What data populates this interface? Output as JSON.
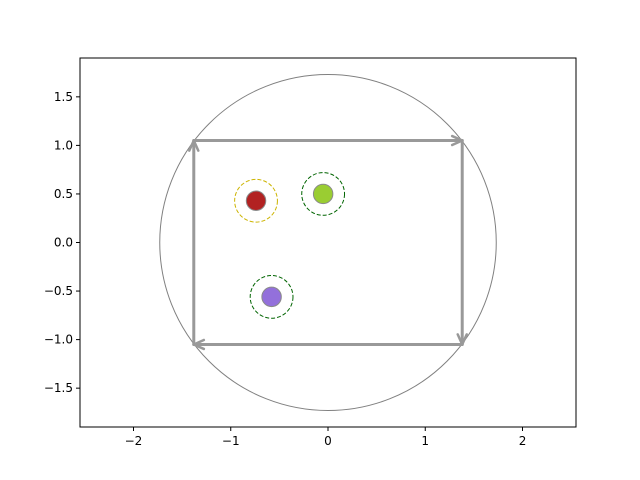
{
  "chart_data": {
    "type": "scatter",
    "xlim": [
      -2.55,
      2.55
    ],
    "ylim": [
      -1.9,
      1.9
    ],
    "xticks": [
      -2,
      -1,
      0,
      1,
      2
    ],
    "yticks": [
      -1.5,
      -1.0,
      -0.5,
      0.0,
      0.5,
      1.0,
      1.5
    ],
    "xtick_labels": [
      "−2",
      "−1",
      "0",
      "1",
      "2"
    ],
    "ytick_labels": [
      "−1.5",
      "−1.0",
      "−0.5",
      "0.0",
      "0.5",
      "1.0",
      "1.5"
    ],
    "grid": false,
    "circle": {
      "center": [
        0,
        0
      ],
      "radius": 1.73,
      "color": "#808080"
    },
    "path": {
      "color": "#999999",
      "vertices": [
        [
          -1.38,
          -1.05
        ],
        [
          -1.38,
          1.05
        ],
        [
          1.38,
          1.05
        ],
        [
          1.38,
          -1.05
        ],
        [
          -1.38,
          -1.05
        ]
      ]
    },
    "points": [
      {
        "x": -0.74,
        "y": 0.43,
        "color": "#b22222",
        "ring_color": "#ccb400"
      },
      {
        "x": -0.05,
        "y": 0.5,
        "color": "#9acd32",
        "ring_color": "#006400"
      },
      {
        "x": -0.58,
        "y": -0.56,
        "color": "#9370db",
        "ring_color": "#006400"
      }
    ],
    "point_radius": 0.1,
    "ring_radius": 0.22
  }
}
